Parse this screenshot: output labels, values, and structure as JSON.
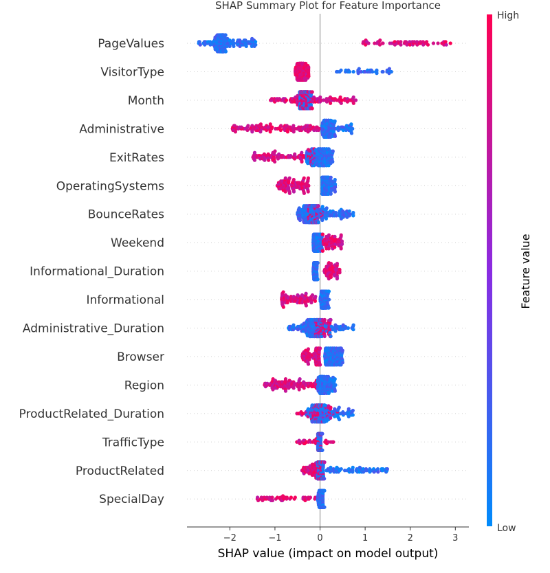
{
  "chart_data": {
    "type": "scatter",
    "subtype": "shap-beeswarm-summary",
    "title": "SHAP Summary Plot for Feature Importance",
    "xlabel": "SHAP value (impact on model output)",
    "ylabel": "",
    "xlim": [
      -2.95,
      3.3
    ],
    "xticks": [
      -2,
      -1,
      0,
      1,
      2,
      3
    ],
    "xtick_labels": [
      "−2",
      "−1",
      "0",
      "1",
      "2",
      "3"
    ],
    "grid": false,
    "colorbar": {
      "label": "Feature value",
      "high_label": "High",
      "low_label": "Low",
      "low_color": "#008bfb",
      "mid_color": "#8a2be2",
      "high_color": "#ff0052"
    },
    "colors": {
      "zero_line": "#999999",
      "axis": "#333333",
      "row_guide": "#cccccc"
    },
    "features": [
      {
        "name": "PageValues",
        "low_range": [
          -2.7,
          -1.4
        ],
        "high_range": [
          0.95,
          2.95
        ],
        "low_mass": 0.74,
        "core": [
          -2.2,
          0.12
        ]
      },
      {
        "name": "VisitorType",
        "low_range": [
          0.35,
          1.6
        ],
        "high_range": [
          -0.55,
          -0.25
        ],
        "low_mass": 0.15,
        "core": [
          -0.42,
          0.07
        ]
      },
      {
        "name": "Month",
        "low_range": [
          -0.45,
          -0.2
        ],
        "high_range": [
          -1.1,
          0.8
        ],
        "low_mass": 0.35,
        "core": [
          -0.35,
          0.2
        ]
      },
      {
        "name": "Administrative",
        "low_range": [
          0.05,
          0.75
        ],
        "high_range": [
          -1.95,
          0.0
        ],
        "low_mass": 0.55,
        "core": [
          0.15,
          0.15
        ]
      },
      {
        "name": "ExitRates",
        "low_range": [
          -0.3,
          0.3
        ],
        "high_range": [
          -1.5,
          -0.1
        ],
        "low_mass": 0.6,
        "core": [
          0.05,
          0.18
        ]
      },
      {
        "name": "OperatingSystems",
        "low_range": [
          0.05,
          0.35
        ],
        "high_range": [
          -0.95,
          -0.25
        ],
        "low_mass": 0.6,
        "core": [
          0.1,
          0.1
        ]
      },
      {
        "name": "BounceRates",
        "low_range": [
          -0.5,
          0.75
        ],
        "high_range": [
          -0.25,
          0.1
        ],
        "low_mass": 0.8,
        "core": [
          -0.2,
          0.25
        ]
      },
      {
        "name": "Weekend",
        "low_range": [
          -0.15,
          0.05
        ],
        "high_range": [
          0.05,
          0.5
        ],
        "low_mass": 0.7,
        "core": [
          -0.1,
          0.05
        ]
      },
      {
        "name": "Informational_Duration",
        "low_range": [
          -0.15,
          -0.05
        ],
        "high_range": [
          0.05,
          0.45
        ],
        "low_mass": 0.75,
        "core": [
          -0.1,
          0.03
        ]
      },
      {
        "name": "Informational",
        "low_range": [
          0.0,
          0.2
        ],
        "high_range": [
          -0.85,
          -0.1
        ],
        "low_mass": 0.7,
        "core": [
          0.08,
          0.06
        ]
      },
      {
        "name": "Administrative_Duration",
        "low_range": [
          -0.7,
          0.75
        ],
        "high_range": [
          -0.1,
          0.25
        ],
        "low_mass": 0.8,
        "core": [
          -0.15,
          0.25
        ]
      },
      {
        "name": "Browser",
        "low_range": [
          0.1,
          0.5
        ],
        "high_range": [
          -0.4,
          0.0
        ],
        "low_mass": 0.6,
        "core": [
          -0.05,
          0.1
        ]
      },
      {
        "name": "Region",
        "low_range": [
          -0.05,
          0.35
        ],
        "high_range": [
          -1.25,
          -0.05
        ],
        "low_mass": 0.55,
        "core": [
          0.05,
          0.12
        ]
      },
      {
        "name": "ProductRelated_Duration",
        "low_range": [
          -0.3,
          0.75
        ],
        "high_range": [
          -0.55,
          0.45
        ],
        "low_mass": 0.7,
        "core": [
          0.0,
          0.15
        ]
      },
      {
        "name": "TrafficType",
        "low_range": [
          -0.05,
          0.05
        ],
        "high_range": [
          -0.55,
          0.3
        ],
        "low_mass": 0.65,
        "core": [
          0.0,
          0.05
        ]
      },
      {
        "name": "ProductRelated",
        "low_range": [
          -0.05,
          1.5
        ],
        "high_range": [
          -0.4,
          0.1
        ],
        "low_mass": 0.6,
        "core": [
          0.0,
          0.1
        ]
      },
      {
        "name": "SpecialDay",
        "low_range": [
          -0.05,
          0.1
        ],
        "high_range": [
          -1.6,
          -0.05
        ],
        "low_mass": 0.8,
        "core": [
          0.02,
          0.04
        ]
      }
    ]
  }
}
